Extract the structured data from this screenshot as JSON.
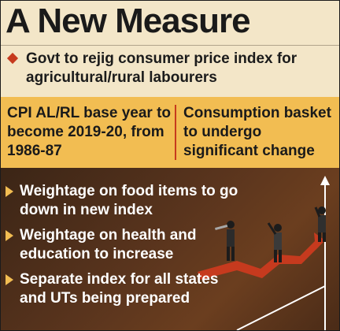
{
  "title": "A New Measure",
  "intro": "Govt to rejig consumer price index for agricultural/rural labourers",
  "band": {
    "left": "CPI AL/RL base year to become 2019-20, from 1986-87",
    "right": "Consumption basket to undergo significant change"
  },
  "points": [
    "Weightage on food items to go down in new index",
    "Weightage on health and education to increase",
    "Separate index for all states and UTs being prepared"
  ],
  "colors": {
    "accent": "#c63a1e",
    "band": "#f2bd52",
    "background": "#f3e6c8",
    "bottom_panel": "#59341d"
  },
  "icons": [
    "diamond-bullet-icon",
    "triangle-bullet-icon",
    "business-people-on-rising-arrow-illustration"
  ]
}
